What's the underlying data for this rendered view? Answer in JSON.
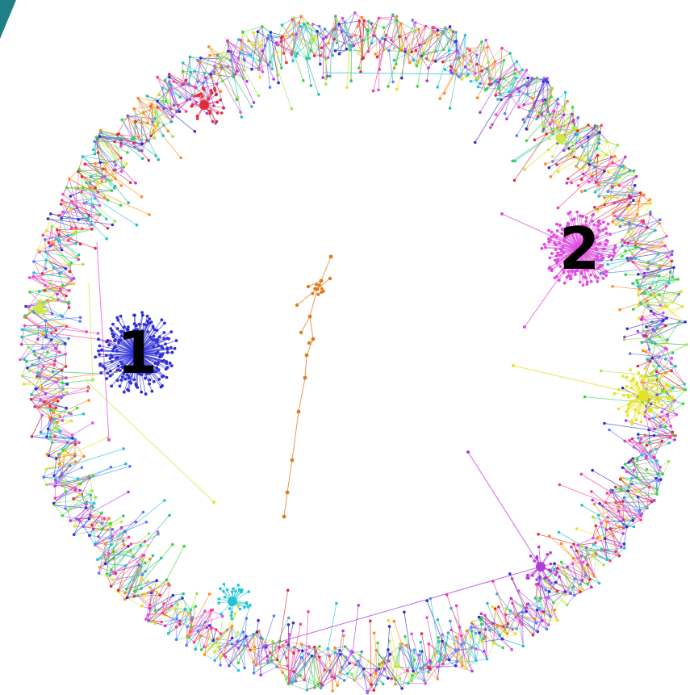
{
  "diagram": {
    "labels": {
      "cluster_1": "1",
      "cluster_2": "2"
    },
    "colors": {
      "corner_tab": "#1f7f86",
      "hub_1": "#2f2fd8",
      "hub_2": "#e04ce0",
      "chain": "#e07a1c",
      "hub_yellow": "#e6e020",
      "hub_cyan": "#22c3d6",
      "hub_purple": "#b13ad8",
      "hub_red": "#e02c3a",
      "hub_lime": "#cfe84a",
      "palette": [
        "#2f2fd8",
        "#e04ce0",
        "#e02c3a",
        "#3cd63c",
        "#22c3d6",
        "#e6e020",
        "#b13ad8",
        "#ff8a1c",
        "#9de34a",
        "#5a7bff",
        "#ff3b8e",
        "#35b8a3"
      ]
    }
  }
}
